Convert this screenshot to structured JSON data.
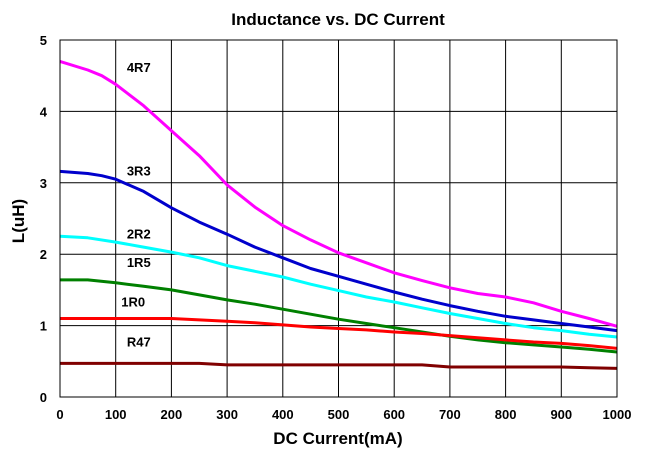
{
  "chart_data": {
    "type": "line",
    "title": "Inductance vs. DC Current",
    "xlabel": "DC Current(mA)",
    "ylabel": "L(uH)",
    "xlim": [
      0,
      1000
    ],
    "ylim": [
      0,
      5
    ],
    "x_ticks": [
      "0",
      "100",
      "200",
      "300",
      "400",
      "500",
      "600",
      "700",
      "800",
      "900",
      "1000"
    ],
    "y_ticks": [
      "0",
      "1",
      "2",
      "3",
      "4",
      "5"
    ],
    "grid": true,
    "legend": "inline labels",
    "series": [
      {
        "name": "4R7",
        "color": "#ff00ff",
        "points": [
          [
            0,
            4.7
          ],
          [
            50,
            4.58
          ],
          [
            75,
            4.5
          ],
          [
            100,
            4.38
          ],
          [
            150,
            4.08
          ],
          [
            200,
            3.73
          ],
          [
            250,
            3.38
          ],
          [
            300,
            2.97
          ],
          [
            350,
            2.66
          ],
          [
            400,
            2.4
          ],
          [
            450,
            2.2
          ],
          [
            500,
            2.02
          ],
          [
            550,
            1.88
          ],
          [
            600,
            1.74
          ],
          [
            650,
            1.63
          ],
          [
            700,
            1.53
          ],
          [
            750,
            1.45
          ],
          [
            800,
            1.4
          ],
          [
            850,
            1.32
          ],
          [
            900,
            1.2
          ],
          [
            950,
            1.1
          ],
          [
            1000,
            0.99
          ]
        ]
      },
      {
        "name": "3R3",
        "color": "#0000cc",
        "points": [
          [
            0,
            3.16
          ],
          [
            50,
            3.13
          ],
          [
            75,
            3.1
          ],
          [
            100,
            3.05
          ],
          [
            150,
            2.88
          ],
          [
            200,
            2.65
          ],
          [
            250,
            2.45
          ],
          [
            300,
            2.28
          ],
          [
            350,
            2.1
          ],
          [
            400,
            1.95
          ],
          [
            450,
            1.8
          ],
          [
            500,
            1.69
          ],
          [
            550,
            1.58
          ],
          [
            600,
            1.47
          ],
          [
            650,
            1.37
          ],
          [
            700,
            1.28
          ],
          [
            750,
            1.2
          ],
          [
            800,
            1.13
          ],
          [
            850,
            1.08
          ],
          [
            900,
            1.03
          ],
          [
            950,
            0.98
          ],
          [
            1000,
            0.93
          ]
        ]
      },
      {
        "name": "2R2",
        "color": "#00ffff",
        "points": [
          [
            0,
            2.25
          ],
          [
            50,
            2.23
          ],
          [
            100,
            2.17
          ],
          [
            150,
            2.1
          ],
          [
            200,
            2.03
          ],
          [
            250,
            1.95
          ],
          [
            300,
            1.84
          ],
          [
            350,
            1.76
          ],
          [
            400,
            1.68
          ],
          [
            450,
            1.58
          ],
          [
            500,
            1.49
          ],
          [
            550,
            1.4
          ],
          [
            600,
            1.33
          ],
          [
            650,
            1.25
          ],
          [
            700,
            1.17
          ],
          [
            750,
            1.1
          ],
          [
            800,
            1.03
          ],
          [
            850,
            0.97
          ],
          [
            900,
            0.93
          ],
          [
            950,
            0.88
          ],
          [
            1000,
            0.84
          ]
        ]
      },
      {
        "name": "1R5",
        "color": "#008000",
        "points": [
          [
            0,
            1.64
          ],
          [
            50,
            1.64
          ],
          [
            100,
            1.6
          ],
          [
            150,
            1.55
          ],
          [
            200,
            1.5
          ],
          [
            250,
            1.43
          ],
          [
            300,
            1.36
          ],
          [
            350,
            1.3
          ],
          [
            400,
            1.23
          ],
          [
            450,
            1.16
          ],
          [
            500,
            1.09
          ],
          [
            550,
            1.03
          ],
          [
            600,
            0.97
          ],
          [
            650,
            0.91
          ],
          [
            700,
            0.85
          ],
          [
            750,
            0.8
          ],
          [
            800,
            0.76
          ],
          [
            850,
            0.73
          ],
          [
            900,
            0.7
          ],
          [
            950,
            0.67
          ],
          [
            1000,
            0.63
          ]
        ]
      },
      {
        "name": "1R0",
        "color": "#ff0000",
        "points": [
          [
            0,
            1.1
          ],
          [
            50,
            1.1
          ],
          [
            100,
            1.1
          ],
          [
            150,
            1.1
          ],
          [
            200,
            1.1
          ],
          [
            250,
            1.08
          ],
          [
            300,
            1.06
          ],
          [
            350,
            1.04
          ],
          [
            400,
            1.01
          ],
          [
            450,
            0.98
          ],
          [
            500,
            0.96
          ],
          [
            550,
            0.94
          ],
          [
            600,
            0.91
          ],
          [
            650,
            0.89
          ],
          [
            700,
            0.86
          ],
          [
            750,
            0.83
          ],
          [
            800,
            0.8
          ],
          [
            850,
            0.77
          ],
          [
            900,
            0.75
          ],
          [
            950,
            0.72
          ],
          [
            1000,
            0.68
          ]
        ]
      },
      {
        "name": "R47",
        "color": "#800000",
        "points": [
          [
            0,
            0.47
          ],
          [
            50,
            0.47
          ],
          [
            100,
            0.47
          ],
          [
            150,
            0.47
          ],
          [
            200,
            0.47
          ],
          [
            250,
            0.47
          ],
          [
            300,
            0.45
          ],
          [
            350,
            0.45
          ],
          [
            400,
            0.45
          ],
          [
            450,
            0.45
          ],
          [
            500,
            0.45
          ],
          [
            550,
            0.45
          ],
          [
            600,
            0.45
          ],
          [
            650,
            0.45
          ],
          [
            700,
            0.42
          ],
          [
            750,
            0.42
          ],
          [
            800,
            0.42
          ],
          [
            850,
            0.42
          ],
          [
            900,
            0.42
          ],
          [
            950,
            0.41
          ],
          [
            1000,
            0.4
          ]
        ]
      }
    ]
  }
}
